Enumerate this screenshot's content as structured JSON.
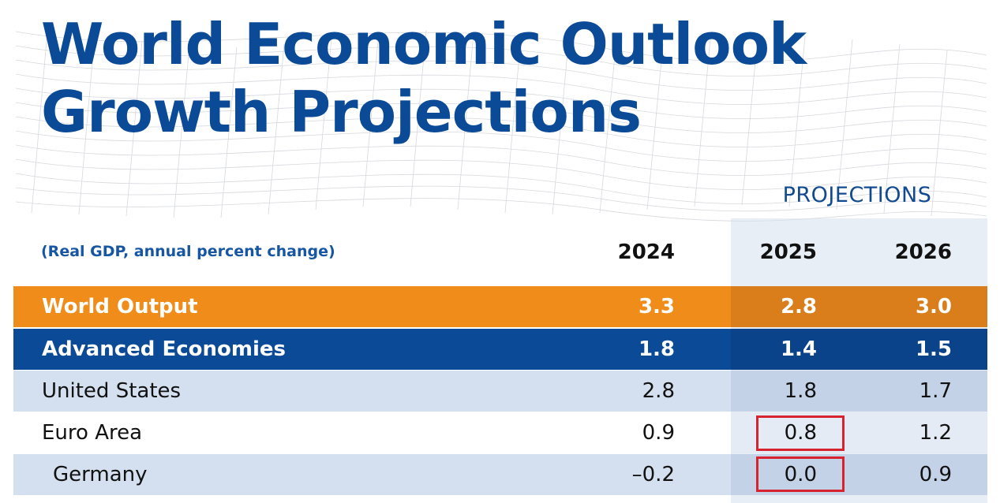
{
  "header": {
    "title_line1": "World Economic Outlook",
    "title_line2": "Growth Projections",
    "projections_label": "PROJECTIONS",
    "subtitle": "(Real GDP, annual percent change)"
  },
  "colors": {
    "title_blue": "#0b4a97",
    "world_output_orange": "#f08c1a",
    "advanced_blue": "#0b4a97",
    "row_light_blue": "#d4e0ef",
    "highlight_red": "#d7222f"
  },
  "chart_data": {
    "type": "table",
    "title": "World Economic Outlook Growth Projections",
    "subtitle": "(Real GDP, annual percent change)",
    "column_group": "PROJECTIONS",
    "columns": [
      "2024",
      "2025",
      "2026"
    ],
    "projection_columns": [
      "2025",
      "2026"
    ],
    "rows": [
      {
        "label": "World Output",
        "values": [
          "3.3",
          "2.8",
          "3.0"
        ]
      },
      {
        "label": "Advanced Economies",
        "values": [
          "1.8",
          "1.4",
          "1.5"
        ]
      },
      {
        "label": "United States",
        "values": [
          "2.8",
          "1.8",
          "1.7"
        ]
      },
      {
        "label": "Euro Area",
        "values": [
          "0.9",
          "0.8",
          "1.2"
        ]
      },
      {
        "label": "Germany",
        "values": [
          "–0.2",
          "0.0",
          "0.9"
        ]
      }
    ],
    "highlighted_cells": [
      {
        "row": "Euro Area",
        "column": "2025"
      },
      {
        "row": "Germany",
        "column": "2025"
      }
    ]
  }
}
